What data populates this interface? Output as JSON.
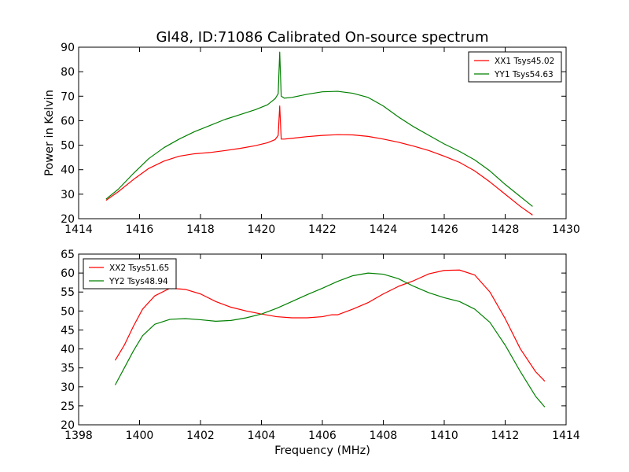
{
  "figure": {
    "title": "Gl48, ID:71086 Calibrated On-source spectrum"
  },
  "chart_data": [
    {
      "type": "line",
      "title": "Gl48, ID:71086 Calibrated On-source spectrum",
      "xlabel": "",
      "ylabel": "Power in Kelvin",
      "xlim": [
        1414,
        1430
      ],
      "ylim": [
        20,
        90
      ],
      "xticks": [
        1414,
        1416,
        1418,
        1420,
        1422,
        1424,
        1426,
        1428,
        1430
      ],
      "yticks": [
        20,
        30,
        40,
        50,
        60,
        70,
        80,
        90
      ],
      "legend_position": "top-right",
      "grid": false,
      "series": [
        {
          "name": "XX1 Tsys45.02",
          "color": "#ff0000",
          "x": [
            1414.9,
            1415.3,
            1415.8,
            1416.3,
            1416.8,
            1417.3,
            1417.8,
            1418.3,
            1418.8,
            1419.3,
            1419.8,
            1420.2,
            1420.45,
            1420.55,
            1420.6,
            1420.65,
            1420.75,
            1421.0,
            1421.5,
            1422.0,
            1422.5,
            1423.0,
            1423.5,
            1424.0,
            1424.5,
            1425.0,
            1425.5,
            1426.0,
            1426.5,
            1427.0,
            1427.5,
            1428.0,
            1428.5,
            1428.9
          ],
          "y": [
            27.5,
            31,
            36,
            40.5,
            43.5,
            45.5,
            46.5,
            47,
            47.8,
            48.7,
            49.8,
            51,
            52.3,
            54,
            66,
            52.5,
            52.5,
            52.8,
            53.5,
            54.0,
            54.3,
            54.2,
            53.6,
            52.5,
            51.2,
            49.6,
            47.8,
            45.5,
            43,
            39.5,
            35,
            30,
            25,
            21.5
          ]
        },
        {
          "name": "YY1 Tsys54.63",
          "color": "#008000",
          "x": [
            1414.9,
            1415.3,
            1415.8,
            1416.3,
            1416.8,
            1417.3,
            1417.8,
            1418.3,
            1418.8,
            1419.3,
            1419.8,
            1420.2,
            1420.45,
            1420.55,
            1420.6,
            1420.65,
            1420.75,
            1421.0,
            1421.5,
            1422.0,
            1422.5,
            1423.0,
            1423.5,
            1424.0,
            1424.5,
            1425.0,
            1425.5,
            1426.0,
            1426.5,
            1427.0,
            1427.5,
            1428.0,
            1428.5,
            1428.9
          ],
          "y": [
            28,
            32,
            38.5,
            44.5,
            49,
            52.5,
            55.5,
            58,
            60.5,
            62.5,
            64.5,
            66.5,
            69,
            71,
            88,
            70,
            69.2,
            69.5,
            70.8,
            71.8,
            72,
            71.2,
            69.5,
            66,
            61.5,
            57.5,
            54,
            50.5,
            47.5,
            44,
            39.5,
            34,
            29,
            25
          ]
        }
      ]
    },
    {
      "type": "line",
      "title": "",
      "xlabel": "Frequency (MHz)",
      "ylabel": "",
      "xlim": [
        1398,
        1414
      ],
      "ylim": [
        20,
        65
      ],
      "xticks": [
        1398,
        1400,
        1402,
        1404,
        1406,
        1408,
        1410,
        1412,
        1414
      ],
      "yticks": [
        20,
        25,
        30,
        35,
        40,
        45,
        50,
        55,
        60,
        65
      ],
      "legend_position": "top-left",
      "grid": false,
      "series": [
        {
          "name": "XX2 Tsys51.65",
          "color": "#ff0000",
          "x": [
            1399.2,
            1399.5,
            1399.8,
            1400.1,
            1400.5,
            1401.0,
            1401.5,
            1402.0,
            1402.5,
            1403.0,
            1403.5,
            1404.0,
            1404.5,
            1405.0,
            1405.5,
            1406.0,
            1406.3,
            1406.5,
            1407.0,
            1407.5,
            1408.0,
            1408.5,
            1409.0,
            1409.5,
            1410.0,
            1410.5,
            1411.0,
            1411.5,
            1412.0,
            1412.5,
            1413.0,
            1413.3
          ],
          "y": [
            37,
            41,
            46,
            50.5,
            54,
            56,
            55.7,
            54.5,
            52.5,
            51,
            50,
            49.2,
            48.5,
            48.2,
            48.2,
            48.5,
            49,
            49,
            50.5,
            52.2,
            54.5,
            56.5,
            58,
            59.8,
            60.7,
            60.8,
            59.5,
            55,
            48,
            40,
            34,
            31.5
          ]
        },
        {
          "name": "YY2 Tsys48.94",
          "color": "#008000",
          "x": [
            1399.2,
            1399.5,
            1399.8,
            1400.1,
            1400.5,
            1401.0,
            1401.5,
            1402.0,
            1402.5,
            1403.0,
            1403.5,
            1404.0,
            1404.5,
            1405.0,
            1405.5,
            1406.0,
            1406.5,
            1407.0,
            1407.5,
            1408.0,
            1408.5,
            1409.0,
            1409.5,
            1410.0,
            1410.5,
            1411.0,
            1411.5,
            1412.0,
            1412.5,
            1413.0,
            1413.3
          ],
          "y": [
            30.5,
            35,
            39.5,
            43.5,
            46.5,
            47.8,
            48,
            47.7,
            47.3,
            47.5,
            48.2,
            49.2,
            50.7,
            52.5,
            54.3,
            56,
            57.8,
            59.3,
            60,
            59.7,
            58.5,
            56.5,
            54.8,
            53.5,
            52.5,
            50.5,
            47,
            41,
            34,
            27.5,
            24.7
          ]
        }
      ]
    }
  ]
}
